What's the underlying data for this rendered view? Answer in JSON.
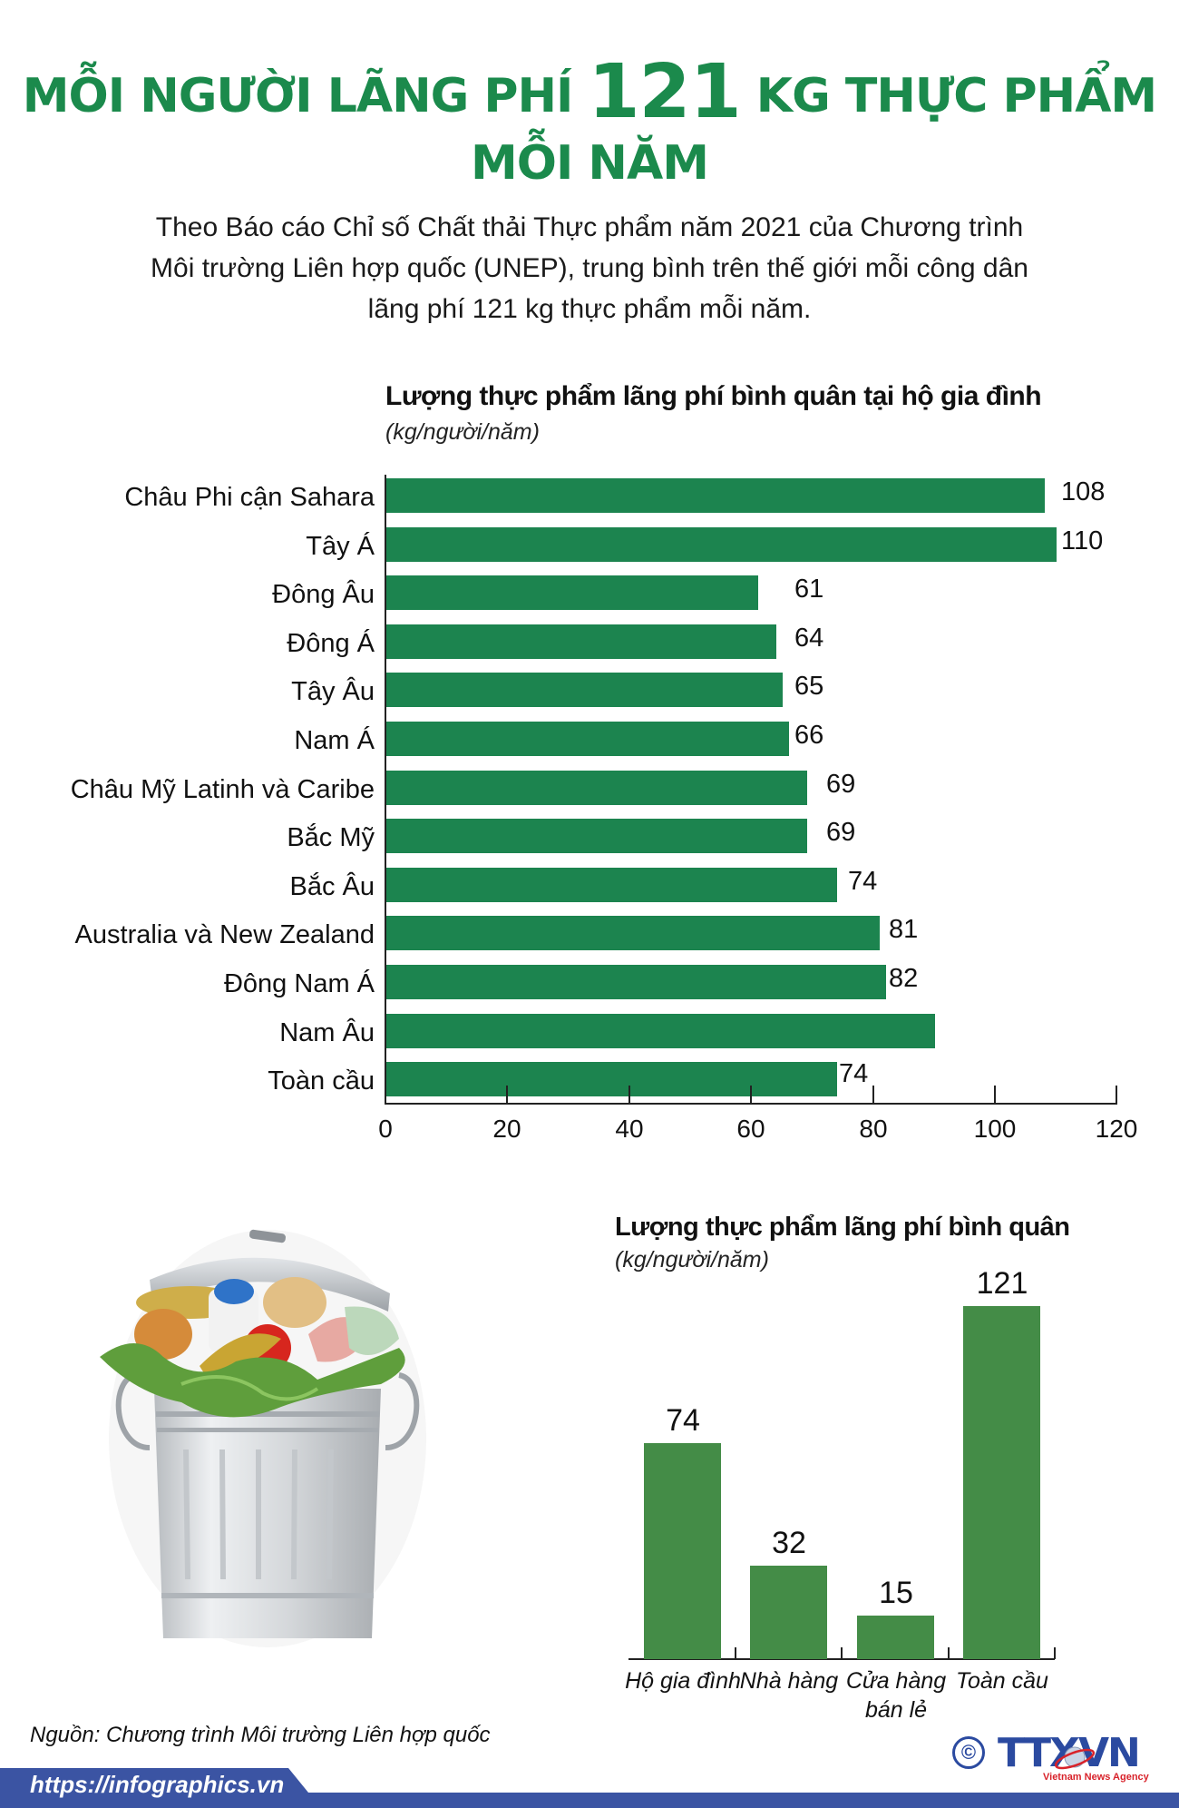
{
  "title": {
    "line1_before": "MỖI NGƯỜI LÃNG PHÍ",
    "line1_number": "121",
    "line1_after": "KG THỰC PHẨM",
    "line2": "MỖI NĂM"
  },
  "intro": {
    "line1": "Theo Báo cáo Chỉ số Chất thải Thực phẩm năm 2021 của Chương trình",
    "line2": "Môi trường Liên hợp quốc (UNEP), trung bình trên thế giới mỗi công dân",
    "line3": "lãng phí 121 kg thực phẩm mỗi năm."
  },
  "colors": {
    "title_green": "#1b8a4c",
    "hbar_green": "#1c844f",
    "vbar_green": "#448c47",
    "footer_blue": "#3b54a3",
    "logo_blue": "#2b4aa0",
    "logo_red": "#d8222a"
  },
  "chart_data": [
    {
      "type": "bar",
      "orientation": "horizontal",
      "title": "Lượng thực phẩm lãng phí bình quân tại hộ gia đình",
      "subtitle": "(kg/người/năm)",
      "categories": [
        "Châu Phi cận Sahara",
        "Tây Á",
        "Đông Âu",
        "Đông Á",
        "Tây Âu",
        "Nam Á",
        "Châu Mỹ Latinh và Caribe",
        "Bắc Mỹ",
        "Bắc Âu",
        "Australia và New Zealand",
        "Đông Nam Á",
        "Nam Âu",
        "Toàn cầu"
      ],
      "values": [
        108,
        110,
        61,
        64,
        65,
        66,
        69,
        69,
        74,
        81,
        82,
        90,
        74
      ],
      "value_labels": [
        "108",
        "110",
        "61",
        "64",
        "65",
        "66",
        "69",
        "69",
        "74",
        "81",
        "82",
        "",
        "74"
      ],
      "xticks": [
        "0",
        "20",
        "40",
        "60",
        "80",
        "100",
        "120"
      ],
      "xlim": [
        0,
        120
      ],
      "grid": false,
      "xlabel": "",
      "ylabel": ""
    },
    {
      "type": "bar",
      "orientation": "vertical",
      "title": "Lượng thực phẩm lãng phí bình quân",
      "subtitle": "(kg/người/năm)",
      "categories": [
        "Hộ gia đình",
        "Nhà hàng",
        "Cửa hàng bán lẻ",
        "Toàn cầu"
      ],
      "category_lines": [
        [
          "Hộ gia đình"
        ],
        [
          "Nhà hàng"
        ],
        [
          "Cửa hàng",
          "bán lẻ"
        ],
        [
          "Toàn cầu"
        ]
      ],
      "values": [
        74,
        32,
        15,
        121
      ],
      "value_labels": [
        "74",
        "32",
        "15",
        "121"
      ],
      "grid": false,
      "xlabel": "",
      "ylabel": ""
    }
  ],
  "image": {
    "subject": "trash-can-with-food-waste"
  },
  "footer": {
    "source": "Nguồn: Chương trình Môi trường Liên hợp quốc",
    "url": "https://infographics.vn",
    "copyright_symbol": "©",
    "logo_text_1": "TTX",
    "logo_text_2": "VN",
    "logo_subtitle": "Vietnam News Agency"
  }
}
